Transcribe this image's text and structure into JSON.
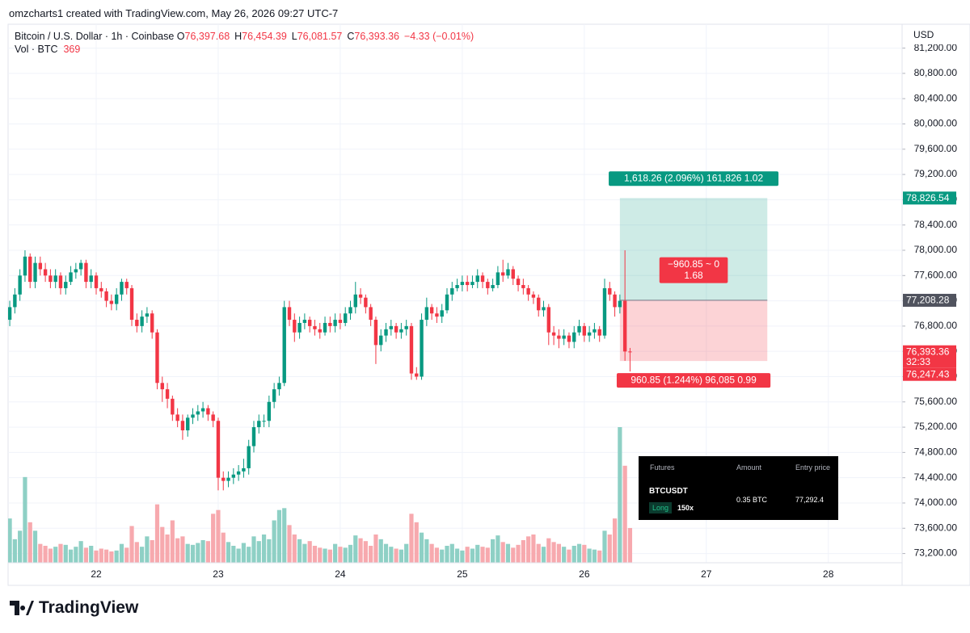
{
  "header": {
    "credit": "omzcharts1 created with TradingView.com, May 26, 2026 09:27 UTC-7",
    "logo": "TradingView"
  },
  "legend": {
    "symbol": "Bitcoin / U.S. Dollar · 1h · Coinbase",
    "ohlc": [
      {
        "key": "O",
        "value": "76,397.68"
      },
      {
        "key": "H",
        "value": "76,454.39"
      },
      {
        "key": "L",
        "value": "76,081.57"
      },
      {
        "key": "C",
        "value": "76,393.36"
      }
    ],
    "change": "−4.33 (−0.01%)",
    "volume_label": "Vol · BTC",
    "volume_value": "369"
  },
  "chart_data": {
    "type": "candlestick",
    "currency": "USD",
    "x": [
      -17,
      -16,
      -15,
      -14,
      -13,
      -12,
      -11,
      -10,
      -9,
      -8,
      -7,
      -6,
      -5,
      -4,
      -3,
      -2,
      -1,
      0,
      1,
      2,
      3,
      4,
      5,
      6,
      7,
      8,
      9,
      10,
      11,
      12,
      13,
      14,
      15,
      16,
      17,
      18,
      19,
      20,
      21,
      22,
      23,
      24,
      25,
      26,
      27,
      28,
      29,
      30,
      31,
      32,
      33,
      34,
      35,
      36,
      37,
      38,
      39,
      40,
      41,
      42,
      43,
      44,
      45,
      46,
      47,
      48,
      49,
      50,
      51,
      52,
      53,
      54,
      55,
      56,
      57,
      58,
      59,
      60,
      61,
      62,
      63,
      64,
      65,
      66,
      67,
      68,
      69,
      70,
      71,
      72,
      73,
      74,
      75,
      76,
      77,
      78,
      79,
      80,
      81,
      82,
      83,
      84,
      85,
      86,
      87,
      88,
      89,
      90,
      91,
      92,
      93,
      94,
      95,
      96,
      97,
      98,
      99,
      100,
      101,
      102,
      103,
      104,
      105
    ],
    "open": [
      76900,
      77100,
      77300,
      77600,
      77900,
      77500,
      77800,
      77700,
      77600,
      77500,
      77600,
      77400,
      77500,
      77650,
      77700,
      77800,
      77500,
      77600,
      77400,
      77350,
      77200,
      77150,
      77300,
      77500,
      77400,
      76900,
      76800,
      76950,
      77000,
      76700,
      75900,
      75800,
      75650,
      75400,
      75300,
      75150,
      75350,
      75400,
      75450,
      75500,
      75400,
      75300,
      74400,
      74350,
      74400,
      74450,
      74500,
      74550,
      74900,
      75200,
      75300,
      75300,
      75600,
      75800,
      75900,
      77100,
      76900,
      76700,
      76850,
      76900,
      76800,
      76750,
      76700,
      76850,
      76800,
      76900,
      76850,
      77000,
      77100,
      77300,
      77250,
      77100,
      76900,
      76500,
      76650,
      76750,
      76800,
      76700,
      76750,
      76800,
      76050,
      76000,
      76900,
      77100,
      77000,
      76950,
      77050,
      77300,
      77400,
      77450,
      77500,
      77450,
      77500,
      77600,
      77500,
      77400,
      77450,
      77650,
      77600,
      77700,
      77550,
      77450,
      77400,
      77300,
      77250,
      77050,
      77100,
      76700,
      76650,
      76600,
      76650,
      76550,
      76700,
      76800,
      76650,
      76700,
      76750,
      76650,
      77400,
      77300,
      77100,
      77200,
      76397.68
    ],
    "high": [
      77200,
      77400,
      77700,
      78000,
      77950,
      77900,
      77900,
      77800,
      77700,
      77700,
      77650,
      77600,
      77750,
      77800,
      77850,
      77850,
      77700,
      77650,
      77500,
      77400,
      77300,
      77400,
      77550,
      77550,
      77450,
      77000,
      77050,
      77100,
      77050,
      76750,
      76000,
      75900,
      75700,
      75500,
      75400,
      75400,
      75500,
      75550,
      75600,
      75550,
      75450,
      75350,
      74500,
      74500,
      74550,
      74600,
      74700,
      75000,
      75300,
      75400,
      75400,
      75700,
      75900,
      76000,
      77200,
      77200,
      77000,
      76950,
      77000,
      76950,
      76900,
      76850,
      76950,
      76950,
      77000,
      77000,
      77100,
      77200,
      77500,
      77400,
      77300,
      77150,
      76950,
      76750,
      76850,
      76900,
      76850,
      76850,
      76900,
      76850,
      76150,
      77000,
      77250,
      77150,
      77100,
      77150,
      77400,
      77500,
      77550,
      77600,
      77600,
      77600,
      77700,
      77650,
      77550,
      77550,
      77750,
      77850,
      77800,
      77750,
      77600,
      77550,
      77450,
      77350,
      77300,
      77200,
      77150,
      76800,
      76750,
      76750,
      76700,
      76800,
      76900,
      76850,
      76800,
      76850,
      76800,
      77550,
      77500,
      77350,
      77300,
      78000,
      76454.39
    ],
    "low": [
      76800,
      77000,
      77200,
      77500,
      77400,
      77400,
      77600,
      77500,
      77400,
      77400,
      77300,
      77300,
      77450,
      77550,
      77600,
      77400,
      77400,
      77300,
      77250,
      77100,
      77050,
      77050,
      77200,
      77300,
      76800,
      76700,
      76700,
      76850,
      76600,
      75800,
      75600,
      75500,
      75300,
      75200,
      75000,
      75050,
      75250,
      75300,
      75350,
      75300,
      75200,
      74200,
      74200,
      74250,
      74300,
      74350,
      74400,
      74450,
      74800,
      75100,
      75200,
      75200,
      75500,
      75700,
      75850,
      76800,
      76550,
      76600,
      76750,
      76700,
      76650,
      76600,
      76650,
      76700,
      76700,
      76750,
      76800,
      76900,
      77000,
      77150,
      77000,
      76800,
      76200,
      76400,
      76550,
      76650,
      76600,
      76600,
      76650,
      75950,
      75950,
      75950,
      76800,
      76900,
      76850,
      76850,
      77000,
      77200,
      77350,
      77350,
      77350,
      77400,
      77400,
      77400,
      77300,
      77350,
      77400,
      77500,
      77550,
      77450,
      77350,
      77300,
      77200,
      77150,
      76950,
      76950,
      76500,
      76500,
      76450,
      76500,
      76450,
      76450,
      76650,
      76550,
      76550,
      76600,
      76550,
      76600,
      77200,
      76950,
      77000,
      76250,
      76081.57
    ],
    "close": [
      77100,
      77300,
      77600,
      77900,
      77500,
      77800,
      77700,
      77600,
      77500,
      77600,
      77400,
      77500,
      77650,
      77700,
      77800,
      77500,
      77600,
      77400,
      77350,
      77200,
      77150,
      77300,
      77500,
      77400,
      76900,
      76800,
      76950,
      77000,
      76700,
      75900,
      75800,
      75650,
      75400,
      75300,
      75150,
      75350,
      75400,
      75450,
      75500,
      75400,
      75300,
      74400,
      74350,
      74400,
      74450,
      74500,
      74550,
      74900,
      75200,
      75300,
      75300,
      75600,
      75800,
      75900,
      77100,
      76900,
      76700,
      76850,
      76900,
      76800,
      76750,
      76700,
      76850,
      76800,
      76900,
      76850,
      77000,
      77100,
      77300,
      77250,
      77100,
      76900,
      76500,
      76650,
      76750,
      76800,
      76700,
      76750,
      76800,
      76050,
      76000,
      76900,
      77100,
      77000,
      76950,
      77050,
      77300,
      77400,
      77450,
      77500,
      77450,
      77500,
      77600,
      77500,
      77400,
      77450,
      77650,
      77600,
      77700,
      77550,
      77450,
      77400,
      77300,
      77250,
      77050,
      77100,
      76700,
      76650,
      76600,
      76650,
      76550,
      76700,
      76800,
      76650,
      76700,
      76750,
      76650,
      77400,
      77300,
      77100,
      77200,
      76397.68,
      76393.36
    ],
    "volume": [
      470,
      250,
      340,
      910,
      430,
      340,
      200,
      180,
      150,
      170,
      200,
      190,
      140,
      170,
      230,
      160,
      180,
      130,
      150,
      140,
      120,
      130,
      200,
      160,
      390,
      220,
      170,
      280,
      240,
      620,
      380,
      300,
      450,
      260,
      280,
      200,
      190,
      210,
      240,
      230,
      520,
      560,
      320,
      220,
      180,
      150,
      210,
      170,
      280,
      230,
      300,
      250,
      450,
      560,
      580,
      400,
      300,
      250,
      200,
      230,
      180,
      160,
      150,
      140,
      200,
      170,
      160,
      190,
      290,
      260,
      230,
      180,
      300,
      250,
      200,
      170,
      150,
      140,
      200,
      520,
      430,
      320,
      250,
      200,
      160,
      140,
      180,
      200,
      150,
      130,
      170,
      150,
      190,
      170,
      160,
      250,
      290,
      220,
      200,
      160,
      190,
      240,
      280,
      300,
      200,
      170,
      260,
      220,
      200,
      170,
      140,
      180,
      200,
      190,
      150,
      140,
      130,
      340,
      300,
      470,
      1440,
      1030,
      369
    ],
    "up_color": "#089981",
    "down_color": "#f23645",
    "volume_up_color": "#8ed0c5",
    "volume_down_color": "#f7a9ae",
    "xlim": [
      -17.33,
      158.35
    ],
    "ylim": [
      73054,
      81578
    ],
    "xticks": [
      {
        "value": 0,
        "label": "22"
      },
      {
        "value": 24,
        "label": "23"
      },
      {
        "value": 48,
        "label": "24"
      },
      {
        "value": 72,
        "label": "25"
      },
      {
        "value": 96,
        "label": "26"
      },
      {
        "value": 120,
        "label": "27"
      },
      {
        "value": 144,
        "label": "28"
      }
    ],
    "yticks": [
      {
        "value": 73200,
        "label": "73,200.00"
      },
      {
        "value": 73600,
        "label": "73,600.00"
      },
      {
        "value": 74000,
        "label": "74,000.00"
      },
      {
        "value": 74400,
        "label": "74,400.00"
      },
      {
        "value": 74800,
        "label": "74,800.00"
      },
      {
        "value": 75200,
        "label": "75,200.00"
      },
      {
        "value": 75600,
        "label": "75,600.00"
      },
      {
        "value": 76000,
        "label": "76,000.00"
      },
      {
        "value": 76400,
        "label": "76,400.00"
      },
      {
        "value": 76800,
        "label": "76,800.00"
      },
      {
        "value": 77200,
        "label": "77,200.00"
      },
      {
        "value": 77600,
        "label": "77,600.00"
      },
      {
        "value": 78000,
        "label": "78,000.00"
      },
      {
        "value": 78400,
        "label": "78,400.00"
      },
      {
        "value": 78800,
        "label": "78,800.00"
      },
      {
        "value": 79200,
        "label": "79,200.00"
      },
      {
        "value": 79600,
        "label": "79,600.00"
      },
      {
        "value": 80000,
        "label": "80,000.00"
      },
      {
        "value": 80400,
        "label": "80,400.00"
      },
      {
        "value": 80800,
        "label": "80,800.00"
      },
      {
        "value": 81200,
        "label": "81,200.00"
      }
    ],
    "grid": true,
    "position": {
      "start": 103,
      "end": 132,
      "entry": 77208.28,
      "target": 78826.54,
      "stop": 76247.43,
      "target_label": "1,618.26 (2.096%) 161,826 1.02",
      "open_label": [
        "−960.85 ~ 0",
        "1.68"
      ],
      "stop_label": "960.85 (1.244%) 96,085 0.99"
    },
    "price_labels": [
      {
        "value": 78826.54,
        "label": "78,826.54",
        "color": "#089981"
      },
      {
        "value": 77208.28,
        "label": "77,208.28",
        "color": "#50535e"
      },
      {
        "value": 76393.36,
        "label": "76,393.36",
        "sublabel": "32:33",
        "color": "#f23645"
      },
      {
        "value": 76247.43,
        "label": "76,247.43",
        "color": "#f23645"
      }
    ]
  },
  "futures_panel": {
    "title": "Futures",
    "amount_header": "Amount",
    "price_header": "Entry price",
    "symbol": "BTCUSDT",
    "side": "Long",
    "leverage": "150x",
    "amount": "0.35 BTC",
    "entry_price": "77,292.4"
  }
}
